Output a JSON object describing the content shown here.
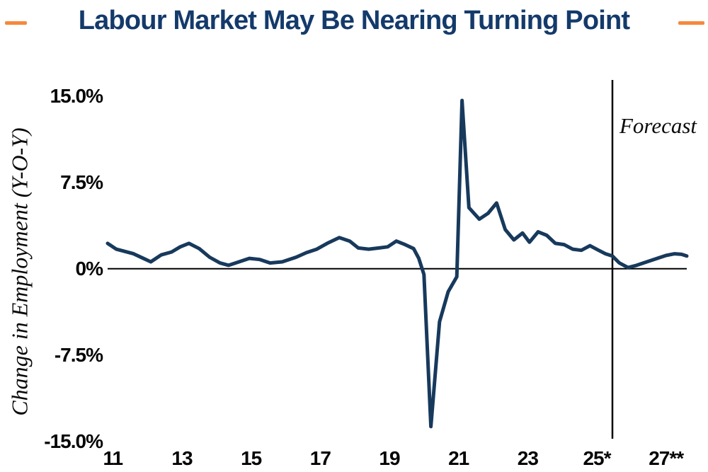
{
  "header": {
    "title": "Labour Market May Be Nearing Turning Point",
    "accent_color": "#F6883C"
  },
  "chart": {
    "ylabel": "Change in Employment (Y-O-Y)",
    "forecast_label": "Forecast",
    "line_color": "#17395C",
    "axis_color": "#000000"
  },
  "chart_data": {
    "type": "line",
    "title": "Labour Market May Be Nearing Turning Point",
    "xlabel": "",
    "ylabel": "Change in Employment (Y-O-Y)",
    "grid": false,
    "legend_position": "none",
    "xlim": [
      10.85,
      27.6
    ],
    "ylim": [
      -15,
      15
    ],
    "y_ticks": [
      {
        "label": "15.0%",
        "value": 15
      },
      {
        "label": "7.5%",
        "value": 7.5
      },
      {
        "label": "0%",
        "value": 0
      },
      {
        "label": "-7.5%",
        "value": -7.5
      },
      {
        "label": "-15.0%",
        "value": -15
      }
    ],
    "x_ticks": [
      {
        "label": "11",
        "year": 11
      },
      {
        "label": "13",
        "year": 13
      },
      {
        "label": "15",
        "year": 15
      },
      {
        "label": "17",
        "year": 17
      },
      {
        "label": "19",
        "year": 19
      },
      {
        "label": "21",
        "year": 21
      },
      {
        "label": "23",
        "year": 23
      },
      {
        "label": "25*",
        "year": 25
      },
      {
        "label": "27**",
        "year": 27
      }
    ],
    "annotations": [
      {
        "text": "Forecast",
        "x": 25.45,
        "type": "vertical-line"
      }
    ],
    "series": [
      {
        "name": "Change in Employment (Y-O-Y), %",
        "points": [
          [
            10.85,
            2.2
          ],
          [
            11.1,
            1.7
          ],
          [
            11.35,
            1.5
          ],
          [
            11.6,
            1.3
          ],
          [
            11.85,
            0.95
          ],
          [
            12.1,
            0.6
          ],
          [
            12.4,
            1.2
          ],
          [
            12.7,
            1.45
          ],
          [
            12.95,
            1.9
          ],
          [
            13.2,
            2.2
          ],
          [
            13.5,
            1.75
          ],
          [
            13.8,
            1.0
          ],
          [
            14.1,
            0.5
          ],
          [
            14.35,
            0.3
          ],
          [
            14.65,
            0.6
          ],
          [
            14.95,
            0.9
          ],
          [
            15.25,
            0.8
          ],
          [
            15.55,
            0.5
          ],
          [
            15.9,
            0.6
          ],
          [
            16.3,
            1.0
          ],
          [
            16.6,
            1.4
          ],
          [
            16.9,
            1.7
          ],
          [
            17.2,
            2.2
          ],
          [
            17.55,
            2.7
          ],
          [
            17.85,
            2.4
          ],
          [
            18.1,
            1.8
          ],
          [
            18.4,
            1.7
          ],
          [
            18.7,
            1.8
          ],
          [
            18.95,
            1.9
          ],
          [
            19.2,
            2.4
          ],
          [
            19.45,
            2.1
          ],
          [
            19.7,
            1.75
          ],
          [
            19.85,
            0.9
          ],
          [
            20.0,
            -0.5
          ],
          [
            20.2,
            -13.7
          ],
          [
            20.45,
            -4.6
          ],
          [
            20.7,
            -2.0
          ],
          [
            20.95,
            -0.7
          ],
          [
            21.1,
            14.6
          ],
          [
            21.3,
            5.3
          ],
          [
            21.6,
            4.3
          ],
          [
            21.85,
            4.8
          ],
          [
            22.1,
            5.7
          ],
          [
            22.35,
            3.4
          ],
          [
            22.6,
            2.5
          ],
          [
            22.85,
            3.1
          ],
          [
            23.05,
            2.3
          ],
          [
            23.3,
            3.2
          ],
          [
            23.55,
            2.9
          ],
          [
            23.8,
            2.2
          ],
          [
            24.05,
            2.1
          ],
          [
            24.3,
            1.7
          ],
          [
            24.55,
            1.6
          ],
          [
            24.8,
            2.0
          ],
          [
            25.05,
            1.6
          ],
          [
            25.25,
            1.3
          ],
          [
            25.45,
            1.1
          ],
          [
            25.65,
            0.5
          ],
          [
            25.9,
            0.1
          ],
          [
            26.15,
            0.3
          ],
          [
            26.4,
            0.55
          ],
          [
            26.7,
            0.85
          ],
          [
            27.0,
            1.15
          ],
          [
            27.25,
            1.3
          ],
          [
            27.45,
            1.25
          ],
          [
            27.6,
            1.1
          ]
        ]
      }
    ]
  }
}
